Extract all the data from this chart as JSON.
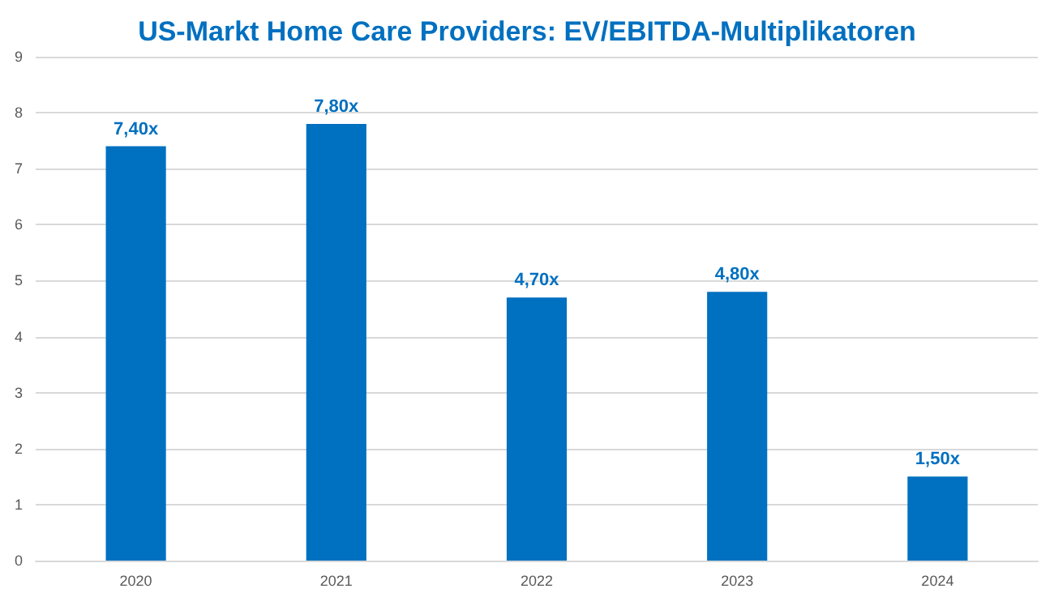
{
  "chart_data": {
    "type": "bar",
    "title": "US-Markt Home Care Providers: EV/EBITDA-Multiplikatoren",
    "categories": [
      "2020",
      "2021",
      "2022",
      "2023",
      "2024"
    ],
    "values": [
      7.4,
      7.8,
      4.7,
      4.8,
      1.5
    ],
    "value_labels": [
      "7,40x",
      "7,80x",
      "4,70x",
      "4,80x",
      "1,50x"
    ],
    "color": "#0070c0",
    "ylim": [
      0,
      9
    ],
    "yticks": [
      0,
      1,
      2,
      3,
      4,
      5,
      6,
      7,
      8,
      9
    ],
    "grid": "y"
  }
}
